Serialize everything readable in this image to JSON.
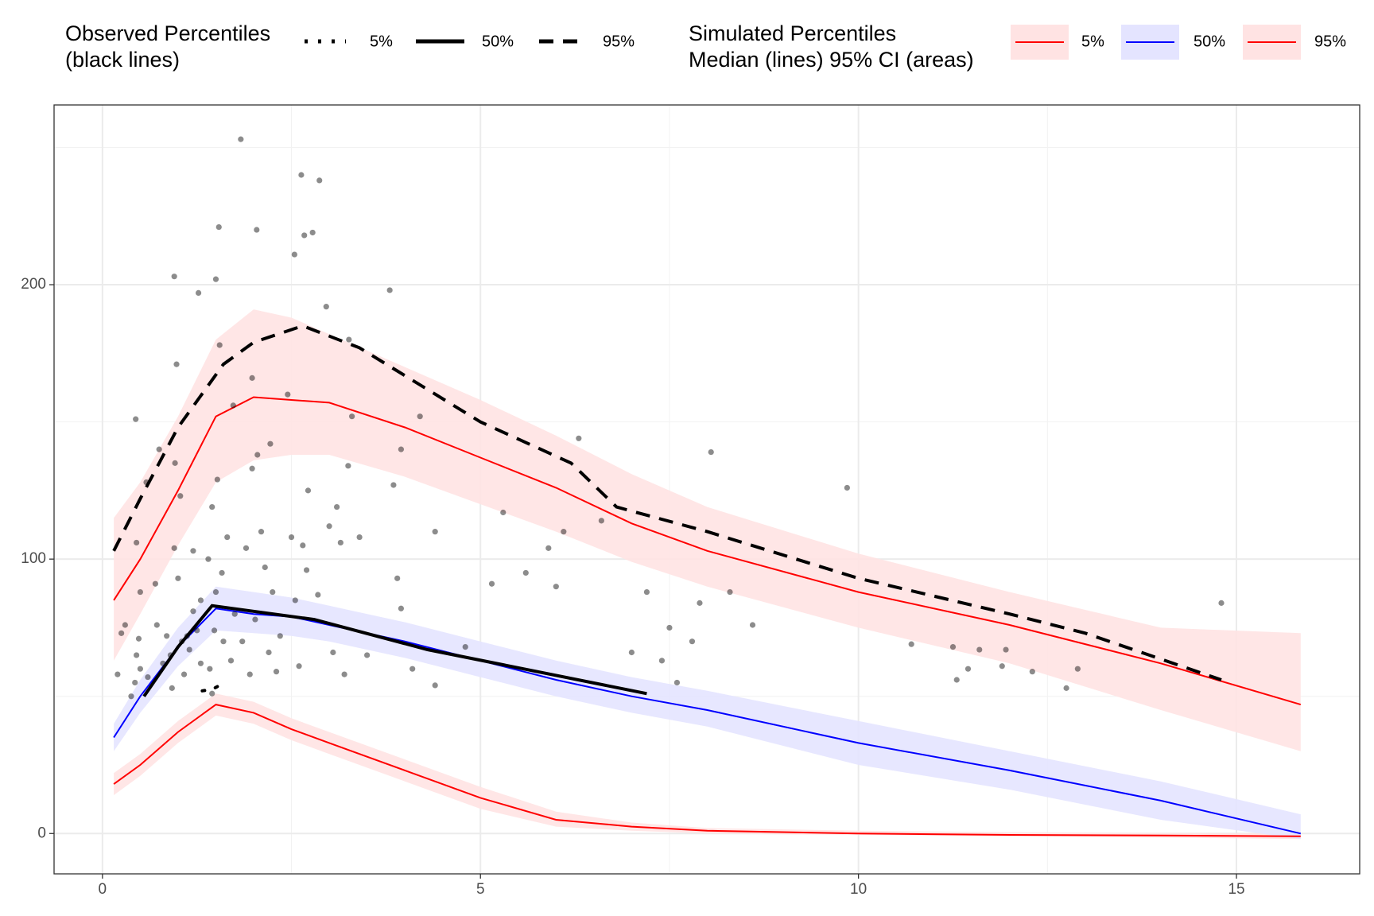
{
  "chart_data": {
    "type": "vpc",
    "xlim": [
      -0.64,
      16.63
    ],
    "ylim": [
      -14.7,
      265.5
    ],
    "xticks": [
      0,
      5,
      10,
      15
    ],
    "yticks": [
      0,
      100,
      200
    ],
    "x_minor_grid": [
      2.5,
      7.5,
      12.5
    ],
    "y_minor_grid": [
      50,
      150,
      250
    ],
    "grid": true,
    "observed": {
      "color": "#000000",
      "x": [
        0.2,
        0.25,
        0.3,
        0.38,
        0.43,
        0.45,
        0.5,
        0.48,
        0.44,
        0.45,
        0.5,
        0.58,
        0.6,
        0.7,
        0.72,
        0.75,
        0.8,
        0.85,
        0.9,
        0.92,
        0.95,
        0.96,
        0.98,
        0.95,
        1.0,
        1.03,
        1.05,
        1.08,
        1.12,
        1.15,
        1.2,
        1.2,
        1.25,
        1.3,
        1.3,
        1.27,
        1.4,
        1.42,
        1.45,
        1.5,
        1.48,
        1.45,
        1.5,
        1.52,
        1.54,
        1.55,
        1.58,
        1.6,
        1.65,
        1.7,
        1.75,
        1.73,
        1.85,
        1.83,
        1.9,
        1.95,
        1.98,
        1.98,
        2.02,
        2.05,
        2.04,
        2.1,
        2.15,
        2.2,
        2.25,
        2.22,
        2.3,
        2.35,
        2.45,
        2.5,
        2.55,
        2.6,
        2.54,
        2.65,
        2.67,
        2.7,
        2.72,
        2.63,
        2.78,
        2.85,
        2.87,
        2.96,
        3.0,
        3.05,
        3.1,
        3.15,
        3.2,
        3.25,
        3.26,
        3.3,
        3.4,
        3.5,
        3.8,
        3.85,
        3.9,
        3.95,
        3.95,
        4.1,
        4.2,
        4.4,
        4.4,
        4.8,
        5.15,
        5.3,
        5.6,
        5.9,
        6.0,
        6.1,
        6.3,
        6.6,
        7.0,
        7.2,
        7.4,
        7.5,
        7.6,
        7.8,
        7.9,
        8.05,
        8.3,
        8.6,
        9.85,
        10.7,
        11.25,
        11.3,
        11.45,
        11.6,
        11.9,
        11.95,
        12.3,
        12.75,
        12.9,
        14.8
      ],
      "y": [
        58,
        73,
        76,
        50,
        55,
        65,
        60,
        71,
        151,
        106,
        88,
        128,
        57,
        91,
        76,
        140,
        62,
        72,
        65,
        53,
        104,
        135,
        171,
        203,
        93,
        123,
        70,
        58,
        72,
        67,
        103,
        81,
        74,
        85,
        62,
        197,
        100,
        60,
        51,
        88,
        74,
        119,
        202,
        129,
        221,
        178,
        95,
        70,
        108,
        63,
        80,
        156,
        70,
        253,
        104,
        58,
        133,
        166,
        78,
        138,
        220,
        110,
        97,
        66,
        88,
        142,
        59,
        72,
        160,
        108,
        85,
        61,
        211,
        105,
        218,
        96,
        125,
        240,
        219,
        87,
        238,
        192,
        112,
        66,
        119,
        106,
        58,
        134,
        180,
        152,
        108,
        65,
        198,
        127,
        93,
        82,
        140,
        60,
        152,
        54,
        110,
        68,
        91,
        117,
        95,
        104,
        90,
        110,
        144,
        114,
        66,
        88,
        63,
        75,
        55,
        70,
        84,
        139,
        88,
        76,
        126,
        69,
        68,
        56,
        60,
        67,
        61,
        67,
        59,
        53,
        60,
        84
      ]
    },
    "observed_percentiles": {
      "title": [
        "Observed Percentiles",
        "(black lines)"
      ],
      "series": [
        {
          "name": "5%",
          "color": "#000000",
          "dash": "dotted",
          "x": [
            1.32,
            1.45,
            1.55
          ],
          "y": [
            52,
            52.5,
            54
          ]
        },
        {
          "name": "50%",
          "color": "#000000",
          "dash": "solid",
          "x": [
            0.55,
            1.0,
            1.45,
            2.8,
            4.3,
            7.2
          ],
          "y": [
            50,
            68,
            83,
            78,
            67,
            51
          ]
        },
        {
          "name": "95%",
          "color": "#000000",
          "dash": "dashed",
          "x": [
            0.15,
            0.5,
            1.0,
            1.6,
            2.0,
            2.65,
            3.4,
            5.0,
            6.2,
            6.8,
            8.0,
            10.0,
            12.0,
            13.0,
            14.8
          ],
          "y": [
            103,
            122,
            148,
            171,
            179,
            185,
            177,
            150,
            135,
            119,
            110,
            93,
            80,
            73,
            56
          ]
        }
      ]
    },
    "simulated_percentiles": {
      "title": [
        "Simulated Percentiles",
        "Median (lines) 95% CI (areas)"
      ],
      "series": [
        {
          "name": "5%",
          "color": "#ff0000",
          "fill": "#ffe3e3",
          "x": [
            0.15,
            0.5,
            1,
            1.5,
            2,
            2.5,
            3,
            4,
            5,
            6,
            7,
            8,
            10,
            12,
            14,
            15.85
          ],
          "median": [
            18,
            25,
            37,
            47,
            44,
            38,
            33,
            23,
            13,
            5,
            2.5,
            1,
            0,
            -0.5,
            -0.7,
            -1
          ],
          "lo": [
            14,
            21,
            33,
            43,
            40,
            34,
            29,
            19,
            9,
            2.5,
            1,
            0,
            -0.5,
            -1,
            -1.5,
            -2
          ],
          "hi": [
            22,
            29,
            41,
            51,
            48,
            42,
            37,
            27,
            17,
            8,
            4,
            2,
            1,
            0.5,
            0.2,
            0
          ]
        },
        {
          "name": "50%",
          "color": "#0000ff",
          "fill": "#e4e4ff",
          "x": [
            0.15,
            0.5,
            1,
            1.5,
            2,
            2.5,
            3,
            4,
            5,
            6,
            7,
            8,
            10,
            12,
            14,
            15.85
          ],
          "median": [
            35,
            50,
            68,
            82,
            80,
            79,
            76,
            70,
            63,
            56,
            50,
            45,
            33,
            23,
            12,
            0
          ],
          "lo": [
            30,
            44,
            61,
            74,
            73,
            72,
            70,
            64,
            57,
            50,
            44,
            39,
            25,
            16,
            5,
            -2
          ],
          "hi": [
            40,
            56,
            75,
            90,
            88,
            86,
            83,
            77,
            70,
            63,
            57,
            52,
            41,
            30,
            19,
            7
          ]
        },
        {
          "name": "95%",
          "color": "#ff0000",
          "fill": "#ffe3e3",
          "x": [
            0.15,
            0.5,
            1,
            1.5,
            2,
            2.5,
            3,
            4,
            5,
            6,
            7,
            8,
            10,
            12,
            14,
            15.85
          ],
          "median": [
            85,
            100,
            125,
            152,
            159,
            158,
            157,
            148,
            137,
            126,
            113,
            103,
            88,
            76,
            62,
            47
          ],
          "lo": [
            63,
            80,
            105,
            128,
            136,
            138,
            138,
            130,
            120,
            110,
            99,
            90,
            75,
            62,
            45,
            30
          ],
          "hi": [
            115,
            128,
            152,
            180,
            191,
            188,
            182,
            170,
            158,
            145,
            131,
            119,
            102,
            88,
            75,
            73
          ]
        }
      ]
    }
  }
}
